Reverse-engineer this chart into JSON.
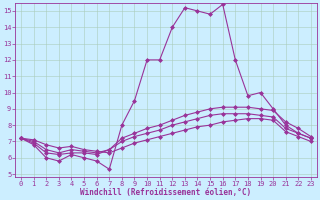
{
  "background_color": "#cceeff",
  "grid_color": "#aaccbb",
  "line_color": "#993399",
  "marker": "D",
  "marker_size": 2.0,
  "line_width": 0.8,
  "xlabel": "Windchill (Refroidissement éolien,°C)",
  "xlabel_fontsize": 5.5,
  "tick_fontsize": 5.0,
  "xlim_min": -0.5,
  "xlim_max": 23.5,
  "ylim_min": 4.8,
  "ylim_max": 15.5,
  "yticks": [
    5,
    6,
    7,
    8,
    9,
    10,
    11,
    12,
    13,
    14,
    15
  ],
  "xticks": [
    0,
    1,
    2,
    3,
    4,
    5,
    6,
    7,
    8,
    9,
    10,
    11,
    12,
    13,
    14,
    15,
    16,
    17,
    18,
    19,
    20,
    21,
    22,
    23
  ],
  "series": [
    [
      7.2,
      6.8,
      6.0,
      5.8,
      6.2,
      6.0,
      5.8,
      5.3,
      8.0,
      9.5,
      12.0,
      12.0,
      14.0,
      15.2,
      15.0,
      14.8,
      15.4,
      12.0,
      9.8,
      10.0,
      9.0,
      8.0,
      7.5,
      7.2
    ],
    [
      7.2,
      6.9,
      6.3,
      6.2,
      6.3,
      6.3,
      6.2,
      6.5,
      7.2,
      7.5,
      7.8,
      8.0,
      8.3,
      8.6,
      8.8,
      9.0,
      9.1,
      9.1,
      9.1,
      9.0,
      8.9,
      8.2,
      7.8,
      7.3
    ],
    [
      7.2,
      7.0,
      6.5,
      6.3,
      6.5,
      6.4,
      6.3,
      6.5,
      7.0,
      7.3,
      7.5,
      7.7,
      8.0,
      8.2,
      8.4,
      8.6,
      8.7,
      8.7,
      8.7,
      8.6,
      8.5,
      7.8,
      7.5,
      7.2
    ],
    [
      7.2,
      7.1,
      6.8,
      6.6,
      6.7,
      6.5,
      6.4,
      6.3,
      6.6,
      6.9,
      7.1,
      7.3,
      7.5,
      7.7,
      7.9,
      8.0,
      8.2,
      8.3,
      8.4,
      8.4,
      8.3,
      7.6,
      7.3,
      7.0
    ]
  ]
}
